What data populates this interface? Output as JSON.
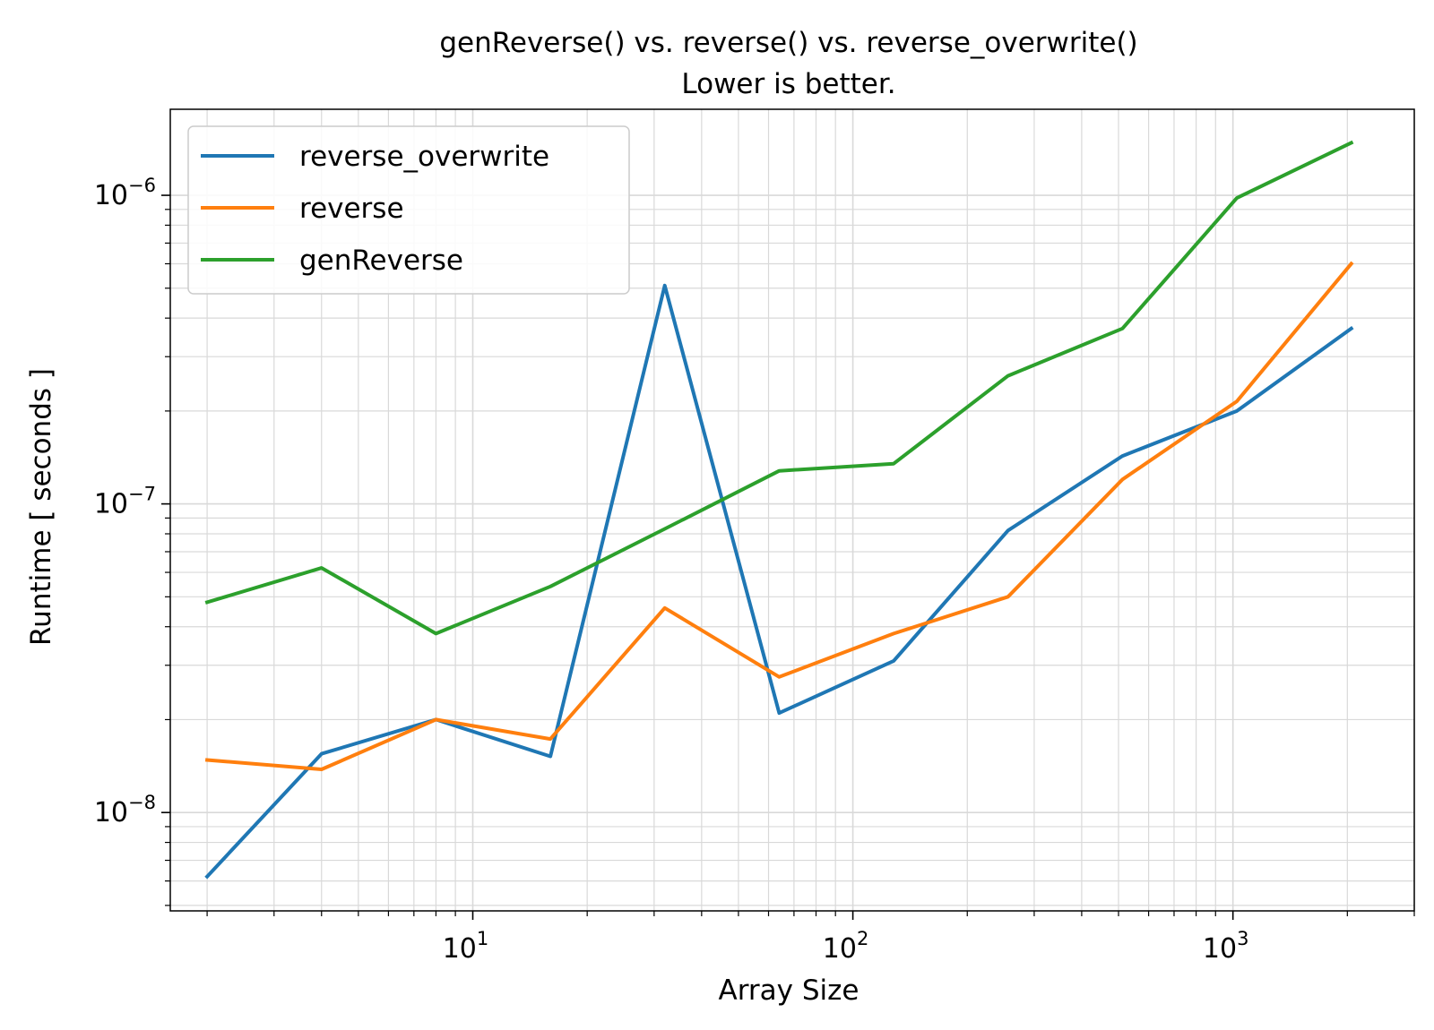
{
  "chart_data": {
    "type": "line",
    "title_line1": "genReverse() vs. reverse() vs. reverse_overwrite()",
    "title_line2": "Lower is better.",
    "xlabel": "Array Size",
    "ylabel": "Runtime [ seconds ]",
    "xscale": "log",
    "yscale": "log",
    "xlim": [
      1.6,
      3000
    ],
    "ylim": [
      4.8e-09,
      1.9e-06
    ],
    "grid": "major and minor",
    "legend_position": "upper-left",
    "x_ticks": [
      {
        "value": 10,
        "base": "10",
        "exp": "1"
      },
      {
        "value": 100,
        "base": "10",
        "exp": "2"
      },
      {
        "value": 1000,
        "base": "10",
        "exp": "3"
      }
    ],
    "y_ticks": [
      {
        "value": 1e-08,
        "base": "10",
        "exp": "−8"
      },
      {
        "value": 1e-07,
        "base": "10",
        "exp": "−7"
      },
      {
        "value": 1e-06,
        "base": "10",
        "exp": "−6"
      }
    ],
    "x": [
      2,
      4,
      8,
      16,
      32,
      64,
      128,
      256,
      512,
      1024,
      2048
    ],
    "series": [
      {
        "name": "reverse_overwrite",
        "color": "#1f77b4",
        "values": [
          6.2e-09,
          1.55e-08,
          2e-08,
          1.52e-08,
          5.1e-07,
          2.1e-08,
          3.1e-08,
          8.2e-08,
          1.43e-07,
          2e-07,
          3.7e-07
        ]
      },
      {
        "name": "reverse",
        "color": "#ff7f0e",
        "values": [
          1.48e-08,
          1.38e-08,
          2e-08,
          1.73e-08,
          4.6e-08,
          2.75e-08,
          3.8e-08,
          5e-08,
          1.2e-07,
          2.15e-07,
          6e-07
        ]
      },
      {
        "name": "genReverse",
        "color": "#2ca02c",
        "values": [
          4.8e-08,
          6.2e-08,
          3.8e-08,
          5.4e-08,
          8.3e-08,
          1.28e-07,
          1.35e-07,
          2.6e-07,
          3.7e-07,
          9.8e-07,
          1.48e-06
        ]
      }
    ]
  }
}
